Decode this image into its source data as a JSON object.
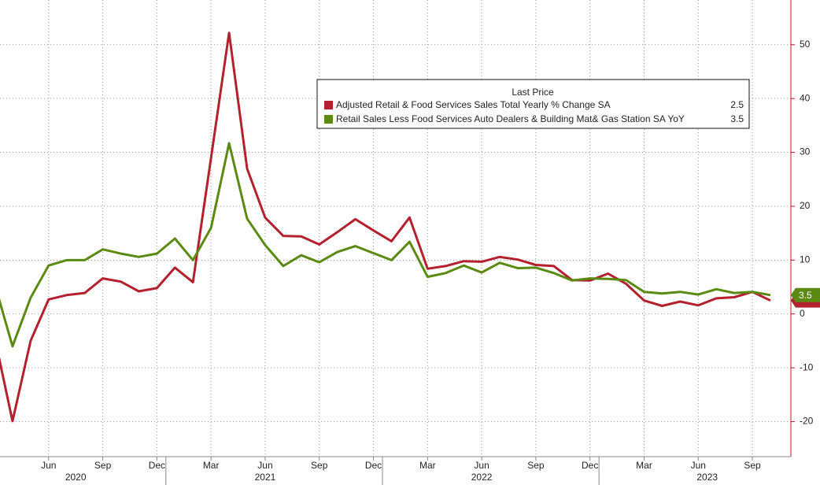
{
  "chart_data": {
    "type": "line",
    "legend_title": "Last Price",
    "categories": [
      null,
      null,
      null,
      "Jun",
      null,
      null,
      "Sep",
      null,
      null,
      "Dec",
      null,
      null,
      "Mar",
      null,
      null,
      "Jun",
      null,
      null,
      "Sep",
      null,
      null,
      "Dec",
      null,
      null,
      "Mar",
      null,
      null,
      "Jun",
      null,
      null,
      "Sep",
      null,
      null,
      "Dec",
      null,
      null,
      "Mar",
      null,
      null,
      "Jun",
      null,
      null,
      "Sep",
      null
    ],
    "years": [
      "2020",
      "2021",
      "2022",
      "2023"
    ],
    "series": [
      {
        "name": "Adjusted Retail & Food Services Sales Total Yearly % Change SA",
        "color": "#b3202e",
        "values": [
          -4.2,
          -19.9,
          -5,
          2.7,
          3.5,
          3.9,
          6.6,
          6,
          4.2,
          4.8,
          8.6,
          5.9,
          29,
          52.2,
          27,
          17.9,
          14.5,
          14.4,
          12.9,
          15.2,
          17.6,
          15.5,
          13.5,
          17.9,
          8.4,
          8.9,
          9.8,
          9.7,
          10.6,
          10.1,
          9.1,
          8.9,
          6.3,
          6.2,
          7.5,
          5.6,
          2.5,
          1.5,
          2.3,
          1.6,
          2.9,
          3.1,
          4.1,
          2.5
        ]
      },
      {
        "name": "Retail Sales Less Food Services Auto Dealers & Building Mat& Gas Station SA YoY",
        "color": "#5a8a12",
        "values": [
          5.7,
          -6,
          3,
          9,
          10,
          10,
          12,
          11.2,
          10.6,
          11.2,
          14,
          10,
          16,
          31.7,
          17.7,
          12.8,
          8.9,
          10.9,
          9.6,
          11.5,
          12.6,
          11.3,
          10,
          13.4,
          6.9,
          7.6,
          9,
          7.7,
          9.5,
          8.5,
          8.6,
          7.6,
          6.2,
          6.6,
          6.5,
          6.3,
          4.1,
          3.8,
          4.1,
          3.6,
          4.6,
          3.9,
          4.1,
          3.5
        ]
      }
    ],
    "ylim": [
      -26.5,
      58.3
    ],
    "yticks": [
      -20,
      -10,
      0,
      10,
      20,
      30,
      40,
      50
    ],
    "grid": true,
    "y_axis_side": "right"
  }
}
